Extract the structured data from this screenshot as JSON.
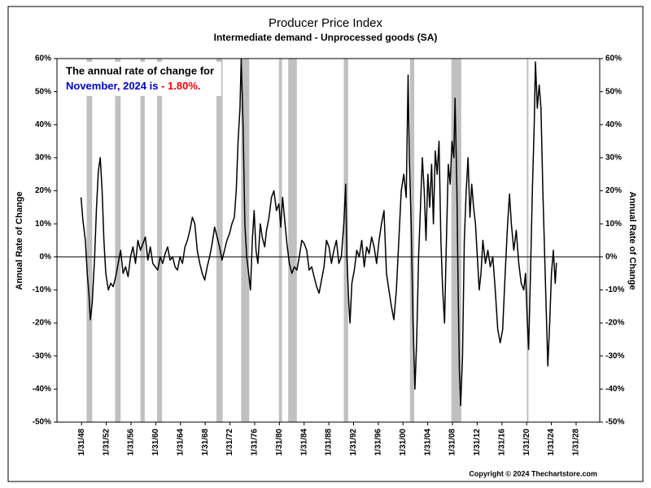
{
  "chart_data": {
    "type": "line",
    "title": "Producer Price Index",
    "subtitle": "Intermediate demand - Unprocessed goods (SA)",
    "y_label": "Annual Rate of Change",
    "y2_label": "Annual Rate of Change",
    "annotation_line1": "The annual rate of change for",
    "annotation_line2": "November, 2024 is",
    "annotation_value": "- 1.80%.",
    "copyright": "Copyright © 2024 Thechartstore.com",
    "xlim": [
      1944.1,
      2031.9
    ],
    "xticks": [
      {
        "value": 1948.08,
        "label": "1/31/48"
      },
      {
        "value": 1952.08,
        "label": "1/31/52"
      },
      {
        "value": 1956.08,
        "label": "1/31/56"
      },
      {
        "value": 1960.08,
        "label": "1/31/60"
      },
      {
        "value": 1964.08,
        "label": "1/31/64"
      },
      {
        "value": 1968.08,
        "label": "1/31/68"
      },
      {
        "value": 1972.08,
        "label": "1/31/72"
      },
      {
        "value": 1976.08,
        "label": "1/31/76"
      },
      {
        "value": 1980.08,
        "label": "1/31/80"
      },
      {
        "value": 1984.08,
        "label": "1/31/84"
      },
      {
        "value": 1988.08,
        "label": "1/31/88"
      },
      {
        "value": 1992.08,
        "label": "1/31/92"
      },
      {
        "value": 1996.08,
        "label": "1/31/96"
      },
      {
        "value": 2000.08,
        "label": "1/31/00"
      },
      {
        "value": 2004.08,
        "label": "1/31/04"
      },
      {
        "value": 2008.08,
        "label": "1/31/08"
      },
      {
        "value": 2012.08,
        "label": "1/31/12"
      },
      {
        "value": 2016.08,
        "label": "1/31/16"
      },
      {
        "value": 2020.08,
        "label": "1/31/20"
      },
      {
        "value": 2024.08,
        "label": "1/31/24"
      },
      {
        "value": 2028.08,
        "label": "1/31/28"
      }
    ],
    "ylim": [
      -50,
      60
    ],
    "yticks": [
      {
        "value": 60,
        "label": "60%"
      },
      {
        "value": 50,
        "label": "50%"
      },
      {
        "value": 40,
        "label": "40%"
      },
      {
        "value": 30,
        "label": "30%"
      },
      {
        "value": 20,
        "label": "20%"
      },
      {
        "value": 10,
        "label": "10%"
      },
      {
        "value": 0,
        "label": "0%"
      },
      {
        "value": -10,
        "label": "-10%"
      },
      {
        "value": -20,
        "label": "-20%"
      },
      {
        "value": -30,
        "label": "-30%"
      },
      {
        "value": -40,
        "label": "-40%"
      },
      {
        "value": -50,
        "label": "-50%"
      }
    ],
    "y2lim": [
      -50,
      60
    ],
    "y2ticks": [
      {
        "value": 60,
        "label": "60%"
      },
      {
        "value": 50,
        "label": "50%"
      },
      {
        "value": 40,
        "label": "40%"
      },
      {
        "value": 30,
        "label": "30%"
      },
      {
        "value": 20,
        "label": "20%"
      },
      {
        "value": 10,
        "label": "10%"
      },
      {
        "value": 0,
        "label": "0%"
      },
      {
        "value": -10,
        "label": "-10%"
      },
      {
        "value": -20,
        "label": "-20%"
      },
      {
        "value": -30,
        "label": "-30%"
      },
      {
        "value": -40,
        "label": "-40%"
      },
      {
        "value": -50,
        "label": "-50%"
      }
    ],
    "recession_color": "#c0c0c0",
    "recessions": [
      [
        1948.9,
        1949.8
      ],
      [
        1953.5,
        1954.4
      ],
      [
        1957.6,
        1958.3
      ],
      [
        1960.3,
        1961.1
      ],
      [
        1969.9,
        1970.9
      ],
      [
        1973.9,
        1975.2
      ],
      [
        1980.0,
        1980.5
      ],
      [
        1981.5,
        1982.9
      ],
      [
        1990.5,
        1991.2
      ],
      [
        2001.2,
        2001.9
      ],
      [
        2007.9,
        2009.5
      ],
      [
        2020.1,
        2020.3
      ]
    ],
    "series": [
      {
        "color": "#000000",
        "x": [
          1948.0,
          1948.3,
          1948.7,
          1949.0,
          1949.3,
          1949.5,
          1949.8,
          1950.2,
          1950.5,
          1950.8,
          1951.1,
          1951.4,
          1951.7,
          1952.0,
          1952.4,
          1952.8,
          1953.2,
          1953.6,
          1954.0,
          1954.4,
          1954.8,
          1955.2,
          1955.6,
          1956.0,
          1956.4,
          1956.8,
          1957.2,
          1957.6,
          1958.0,
          1958.4,
          1958.8,
          1959.2,
          1959.6,
          1960.0,
          1960.4,
          1960.8,
          1961.2,
          1961.6,
          1962.0,
          1962.4,
          1962.8,
          1963.2,
          1963.6,
          1964.0,
          1964.4,
          1964.8,
          1965.2,
          1965.6,
          1966.0,
          1966.4,
          1966.8,
          1967.2,
          1967.6,
          1968.0,
          1968.4,
          1968.8,
          1969.2,
          1969.6,
          1970.0,
          1970.4,
          1970.8,
          1971.2,
          1971.6,
          1972.0,
          1972.4,
          1972.8,
          1973.1,
          1973.4,
          1973.7,
          1973.9,
          1974.2,
          1974.5,
          1974.8,
          1975.1,
          1975.4,
          1975.7,
          1976.0,
          1976.3,
          1976.6,
          1977.0,
          1977.3,
          1977.7,
          1978.0,
          1978.4,
          1978.8,
          1979.2,
          1979.6,
          1980.0,
          1980.3,
          1980.6,
          1981.0,
          1981.3,
          1981.7,
          1982.1,
          1982.5,
          1982.9,
          1983.3,
          1983.7,
          1984.1,
          1984.5,
          1984.9,
          1985.3,
          1985.7,
          1986.1,
          1986.5,
          1986.9,
          1987.3,
          1987.7,
          1988.1,
          1988.5,
          1988.9,
          1989.3,
          1989.7,
          1990.1,
          1990.5,
          1990.8,
          1991.0,
          1991.3,
          1991.5,
          1991.8,
          1992.2,
          1992.6,
          1993.0,
          1993.4,
          1993.8,
          1994.2,
          1994.6,
          1995.0,
          1995.4,
          1995.8,
          1996.2,
          1996.6,
          1997.0,
          1997.4,
          1997.8,
          1998.2,
          1998.6,
          1999.0,
          1999.4,
          1999.8,
          2000.2,
          2000.6,
          2000.9,
          2001.1,
          2001.4,
          2001.7,
          2002.0,
          2002.3,
          2002.6,
          2002.9,
          2003.2,
          2003.5,
          2003.8,
          2004.1,
          2004.4,
          2004.7,
          2005.0,
          2005.3,
          2005.6,
          2005.9,
          2006.2,
          2006.5,
          2006.8,
          2007.1,
          2007.4,
          2007.7,
          2008.0,
          2008.3,
          2008.5,
          2008.8,
          2009.0,
          2009.2,
          2009.4,
          2009.7,
          2010.0,
          2010.3,
          2010.6,
          2010.9,
          2011.2,
          2011.5,
          2011.8,
          2012.1,
          2012.4,
          2012.7,
          2013.0,
          2013.4,
          2013.8,
          2014.2,
          2014.6,
          2015.0,
          2015.4,
          2015.8,
          2016.2,
          2016.6,
          2017.0,
          2017.3,
          2017.6,
          2018.0,
          2018.4,
          2018.8,
          2019.2,
          2019.6,
          2019.9,
          2020.2,
          2020.4,
          2020.7,
          2021.0,
          2021.3,
          2021.5,
          2021.8,
          2022.1,
          2022.4,
          2022.7,
          2023.0,
          2023.3,
          2023.5,
          2023.8,
          2024.1,
          2024.4,
          2024.7,
          2024.9
        ],
        "values": [
          18,
          11,
          5,
          -5,
          -12,
          -19,
          -14,
          0,
          15,
          26,
          30,
          20,
          5,
          -5,
          -10,
          -8,
          -9,
          -6,
          -2,
          2,
          -5,
          -3,
          -6,
          0,
          3,
          -2,
          5,
          2,
          4,
          6,
          -1,
          3,
          -2,
          -3,
          -4,
          0,
          -2,
          1,
          3,
          -1,
          0,
          -3,
          -4,
          0,
          -2,
          3,
          5,
          8,
          12,
          10,
          2,
          -2,
          -5,
          -7,
          -3,
          0,
          4,
          9,
          6,
          3,
          -1,
          2,
          5,
          7,
          10,
          12,
          20,
          35,
          45,
          60,
          40,
          10,
          0,
          -5,
          -10,
          5,
          14,
          2,
          -2,
          10,
          6,
          3,
          8,
          12,
          18,
          20,
          14,
          16,
          9,
          18,
          10,
          4,
          -2,
          -5,
          -3,
          -4,
          0,
          5,
          4,
          2,
          -4,
          -3,
          -6,
          -9,
          -11,
          -7,
          -3,
          5,
          3,
          -2,
          2,
          5,
          -2,
          0,
          10,
          22,
          0,
          -14,
          -20,
          -8,
          -4,
          2,
          0,
          5,
          -3,
          3,
          1,
          6,
          3,
          -2,
          5,
          10,
          14,
          -5,
          -10,
          -15,
          -19,
          -10,
          5,
          20,
          25,
          18,
          55,
          30,
          10,
          -20,
          -40,
          -25,
          0,
          15,
          30,
          20,
          5,
          25,
          15,
          28,
          10,
          32,
          25,
          35,
          5,
          -10,
          -20,
          5,
          28,
          22,
          35,
          30,
          48,
          20,
          -10,
          -35,
          -45,
          -30,
          5,
          20,
          30,
          12,
          22,
          15,
          10,
          0,
          -10,
          -5,
          5,
          -2,
          2,
          -3,
          0,
          -10,
          -22,
          -26,
          -22,
          -5,
          10,
          19,
          10,
          2,
          8,
          -2,
          -8,
          -10,
          -5,
          -20,
          -28,
          -5,
          20,
          40,
          59,
          45,
          52,
          45,
          20,
          0,
          -20,
          -33,
          -20,
          -5,
          2,
          -8,
          -1.8
        ]
      }
    ],
    "annotation_color": "#0000cc",
    "annotation_value_color": "#ff0000"
  }
}
